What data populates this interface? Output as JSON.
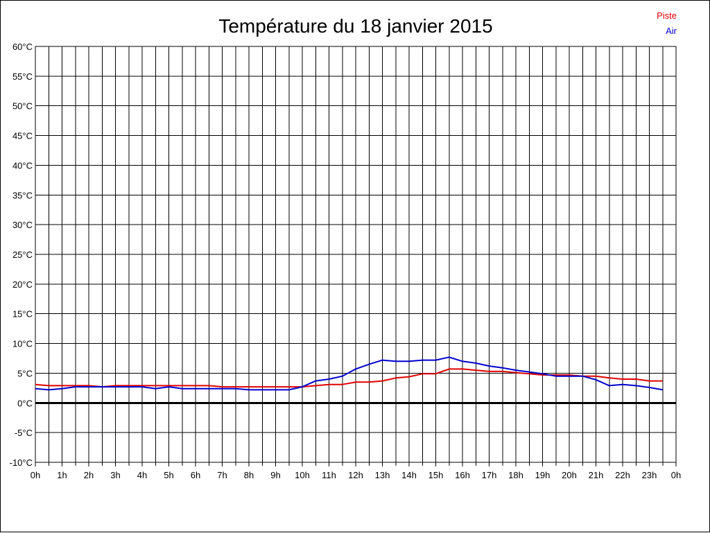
{
  "chart_data": {
    "type": "line",
    "title": "Température du 18 janvier 2015",
    "x_unit": "hour",
    "x_tick_labels": [
      "0h",
      "1h",
      "2h",
      "3h",
      "4h",
      "5h",
      "6h",
      "7h",
      "8h",
      "9h",
      "10h",
      "11h",
      "12h",
      "13h",
      "14h",
      "15h",
      "16h",
      "17h",
      "18h",
      "19h",
      "20h",
      "21h",
      "22h",
      "23h",
      "0h"
    ],
    "y_tick_labels": [
      "60°C",
      "55°C",
      "50°C",
      "45°C",
      "40°C",
      "35°C",
      "30°C",
      "25°C",
      "20°C",
      "15°C",
      "10°C",
      "5°C",
      "0°C",
      "-5°C",
      "-10°C"
    ],
    "xlim": [
      0,
      24
    ],
    "ylim": [
      -10,
      60
    ],
    "grid": true,
    "legend_position": "top-right",
    "x": [
      0,
      0.5,
      1,
      1.5,
      2,
      2.5,
      3,
      3.5,
      4,
      4.5,
      5,
      5.5,
      6,
      6.5,
      7,
      7.5,
      8,
      8.5,
      9,
      9.5,
      10,
      10.5,
      11,
      11.5,
      12,
      12.5,
      13,
      13.5,
      14,
      14.5,
      15,
      15.5,
      16,
      16.5,
      17,
      17.5,
      18,
      18.5,
      19,
      19.5,
      20,
      20.5,
      21,
      21.5,
      22,
      22.5,
      23,
      23.5
    ],
    "series": [
      {
        "name": "Piste",
        "color": "#e00000",
        "values": [
          3.1,
          2.9,
          2.9,
          2.9,
          2.9,
          2.7,
          2.9,
          2.9,
          2.9,
          2.9,
          2.9,
          2.9,
          2.9,
          2.9,
          2.7,
          2.7,
          2.7,
          2.7,
          2.7,
          2.7,
          2.7,
          2.9,
          3.1,
          3.1,
          3.5,
          3.5,
          3.7,
          4.2,
          4.4,
          4.9,
          4.9,
          5.7,
          5.7,
          5.5,
          5.3,
          5.3,
          5.1,
          4.9,
          4.7,
          4.7,
          4.7,
          4.5,
          4.5,
          4.2,
          4.0,
          4.0,
          3.7,
          3.7
        ]
      },
      {
        "name": "Air",
        "color": "#0000d0",
        "values": [
          2.4,
          2.2,
          2.4,
          2.7,
          2.7,
          2.7,
          2.7,
          2.7,
          2.7,
          2.4,
          2.7,
          2.4,
          2.4,
          2.4,
          2.4,
          2.4,
          2.2,
          2.2,
          2.2,
          2.2,
          2.7,
          3.7,
          4.0,
          4.5,
          5.7,
          6.5,
          7.2,
          7.0,
          7.0,
          7.2,
          7.2,
          7.7,
          7.0,
          6.7,
          6.2,
          5.9,
          5.5,
          5.2,
          4.9,
          4.5,
          4.5,
          4.5,
          3.9,
          2.9,
          3.1,
          2.9,
          2.6,
          2.2
        ]
      }
    ]
  }
}
